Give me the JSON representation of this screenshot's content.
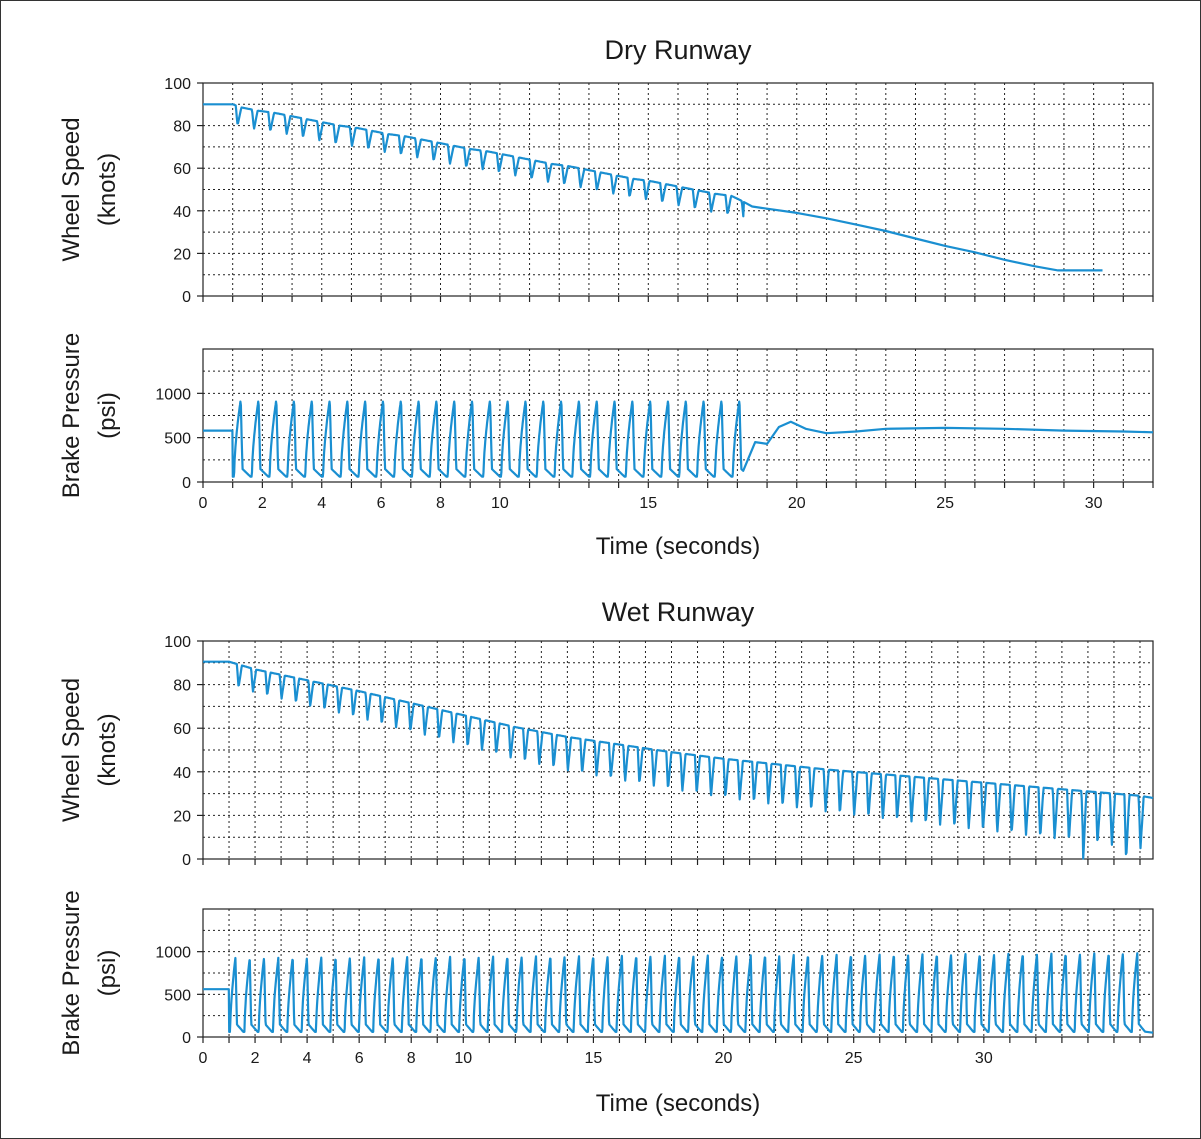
{
  "colors": {
    "series": "#1a8fd1",
    "axis": "#222222",
    "grid": "#222222",
    "text": "#1a1a1a",
    "background": "#ffffff"
  },
  "chart_data": [
    {
      "type": "line",
      "title": "Dry Runway",
      "xlabel": "",
      "ylabel": "Wheel Speed (knots)",
      "ylabel_lines": [
        "Wheel Speed",
        "(knots)"
      ],
      "xlim": [
        0,
        32
      ],
      "ylim": [
        0,
        100
      ],
      "yticks": [
        0,
        20,
        40,
        60,
        80,
        100
      ],
      "grid": true,
      "series": [
        {
          "x": [
            0,
            1.0,
            1.3,
            1.85,
            2.4,
            2.95,
            3.5,
            4.05,
            4.6,
            5.15,
            5.7,
            6.25,
            6.8,
            7.35,
            7.9,
            8.45,
            9.0,
            9.55,
            10.1,
            10.65,
            11.2,
            11.75,
            12.3,
            12.85,
            13.4,
            13.95,
            14.5,
            15.05,
            15.6,
            16.15,
            16.7,
            17.25,
            17.8,
            18.1,
            18.5,
            19.0,
            20.0,
            21.0,
            22.0,
            23.0,
            24.0,
            25.0,
            26.0,
            27.0,
            28.0,
            28.8,
            29.5,
            30.3
          ],
          "y": [
            90,
            90,
            88.5,
            87,
            86,
            84.5,
            83,
            81.5,
            80,
            79,
            77.5,
            76,
            75,
            73.5,
            72,
            70.5,
            69,
            68,
            66.5,
            65,
            63.5,
            62,
            61,
            59.5,
            58,
            56.5,
            55,
            54,
            52.5,
            51,
            49.5,
            48,
            47,
            45,
            42,
            41,
            39,
            36.5,
            33.5,
            30.5,
            27,
            23.5,
            20.5,
            17,
            14,
            12,
            12,
            12
          ]
        }
      ]
    },
    {
      "type": "line",
      "title": "",
      "xlabel": "Time (seconds)",
      "ylabel": "Brake Pressure (psi)",
      "ylabel_lines": [
        "Brake Pressure",
        "(psi)"
      ],
      "xlim": [
        0,
        32
      ],
      "ylim": [
        0,
        1500
      ],
      "yticks": [
        0,
        500,
        1000
      ],
      "xticks": [
        0,
        2,
        4,
        6,
        8,
        10,
        15,
        20,
        25,
        30
      ],
      "grid": true,
      "series": [
        {
          "x": [
            0,
            1.0,
            18.2,
            18.6,
            19.0,
            19.4,
            19.8,
            20.3,
            21.0,
            22.0,
            23.0,
            25.0,
            27.0,
            29.0,
            31.0,
            32.0
          ],
          "y": [
            580,
            580,
            870,
            450,
            430,
            620,
            680,
            600,
            550,
            570,
            600,
            610,
            600,
            580,
            570,
            560
          ],
          "annotation": "Oscillates between about 60 and 930 psi roughly every 0.6 s from 1 s to 18 s, then settles near 600 psi"
        }
      ]
    },
    {
      "type": "line",
      "title": "Wet Runway",
      "xlabel": "",
      "ylabel": "Wheel Speed (knots)",
      "ylabel_lines": [
        "Wheel Speed",
        "(knots)"
      ],
      "xlim": [
        0,
        36.5
      ],
      "ylim": [
        0,
        100
      ],
      "yticks": [
        0,
        20,
        40,
        60,
        80,
        100
      ],
      "grid": true,
      "series": [
        {
          "x": [
            0,
            1.0,
            2,
            4,
            6,
            8,
            10,
            12,
            14,
            16,
            18,
            20,
            22,
            24,
            26,
            28,
            30,
            32,
            34,
            35,
            36,
            36.5
          ],
          "y": [
            90.5,
            90.5,
            87,
            82,
            77,
            71.5,
            66,
            60.5,
            56,
            52.5,
            49,
            46,
            43.5,
            41,
            39,
            37,
            35,
            33,
            31,
            30,
            29,
            28
          ],
          "annotation": "Wheel-slip dips of 10 to 25 knots roughly every 0.55 s after 1.3 s, deepening to 0 near 34 s and 35.5 s"
        }
      ]
    },
    {
      "type": "line",
      "title": "",
      "xlabel": "Time (seconds)",
      "ylabel": "Brake Pressure (psi)",
      "ylabel_lines": [
        "Brake Pressure",
        "(psi)"
      ],
      "xlim": [
        0,
        36.5
      ],
      "ylim": [
        0,
        1500
      ],
      "yticks": [
        0,
        500,
        1000
      ],
      "xticks": [
        0,
        2,
        4,
        6,
        8,
        10,
        15,
        20,
        25,
        30
      ],
      "grid": true,
      "series": [
        {
          "x": [
            0,
            1.0,
            36.5
          ],
          "y": [
            560,
            560,
            50
          ],
          "annotation": "Oscillates between about 60 and 950 to 1000 psi roughly every 0.55 s from 1 s to the end"
        }
      ]
    }
  ]
}
